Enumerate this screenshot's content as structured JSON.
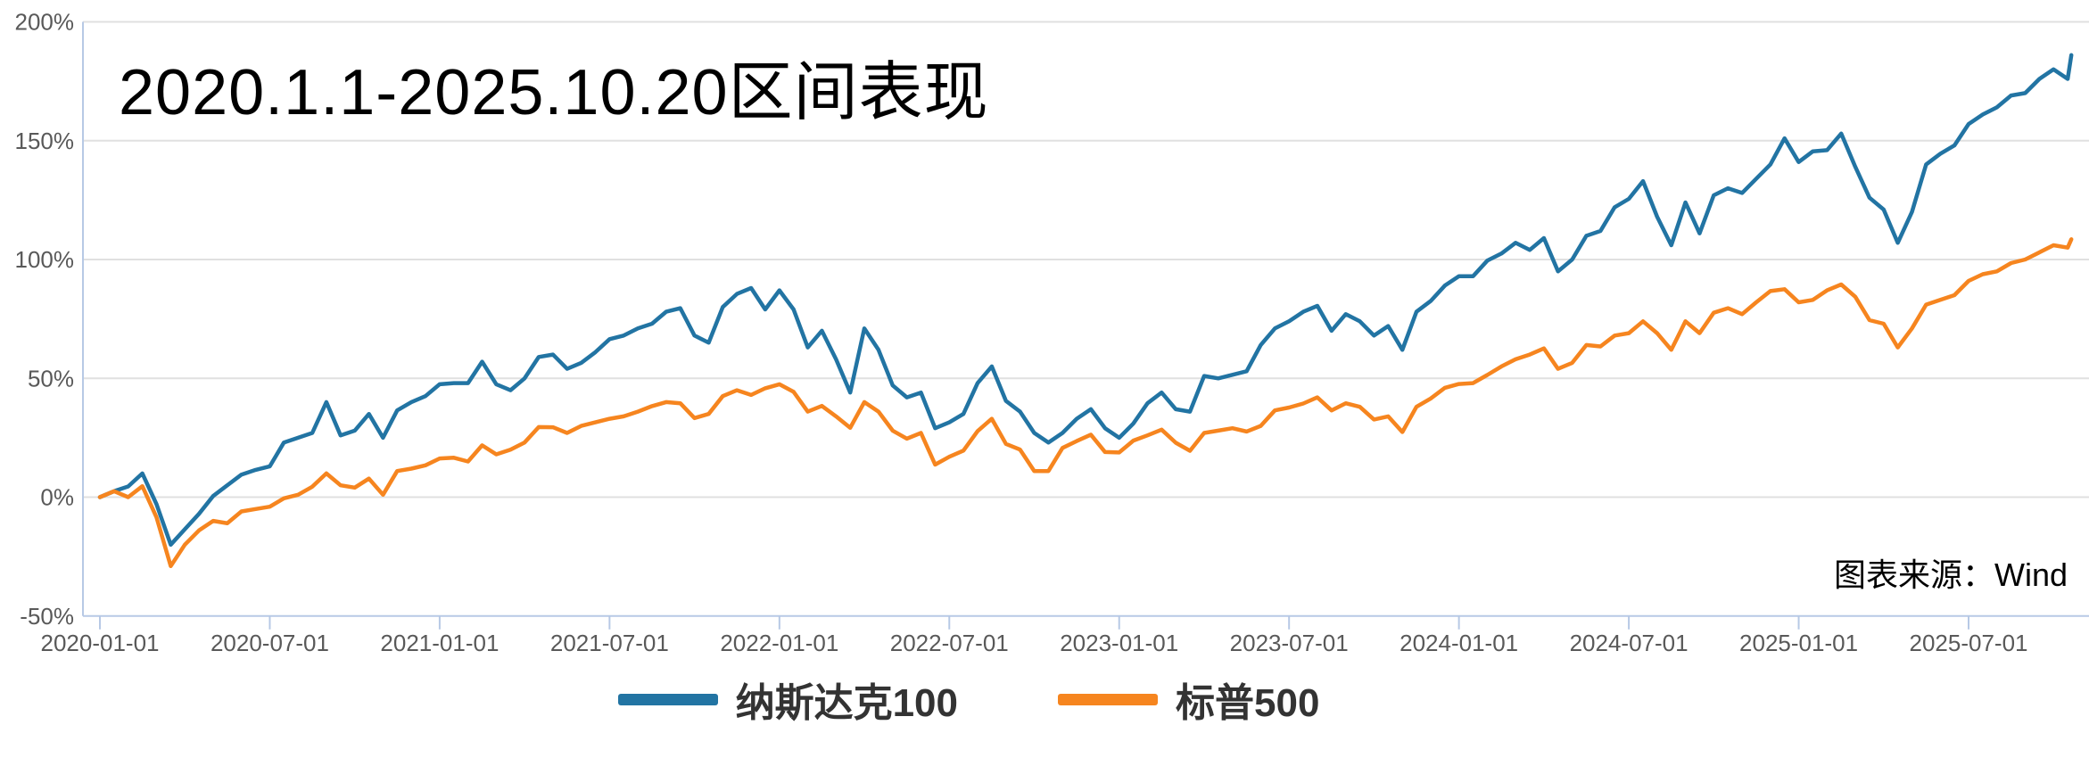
{
  "title": "2020.1.1-2025.10.20区间表现",
  "source_note": "图表来源：Wind",
  "legend": [
    {
      "label": "纳斯达克100",
      "color": "#2274A3"
    },
    {
      "label": "标普500",
      "color": "#F6851F"
    }
  ],
  "colors": {
    "background": "#FFFFFF",
    "gridline": "#E0E0E0",
    "axis_line": "#B7C9E5",
    "tick_label": "#595959",
    "title_text": "#000000",
    "legend_text": "#333333",
    "nasdaq100_line": "#2274A3",
    "sp500_line": "#F6851F"
  },
  "chart_data": {
    "type": "line",
    "title": "2020.1.1-2025.10.20区间表现",
    "xlabel": "",
    "ylabel": "",
    "ylim": [
      -50,
      200
    ],
    "grid": "horizontal",
    "legend_position": "bottom",
    "x_unit": "months since 2020-01-01",
    "x_tick_months": [
      0,
      6,
      12,
      18,
      24,
      30,
      36,
      42,
      48,
      54,
      60,
      66
    ],
    "x_tick_labels": [
      "2020-01-01",
      "2020-07-01",
      "2021-01-01",
      "2021-07-01",
      "2022-01-01",
      "2022-07-01",
      "2023-01-01",
      "2023-07-01",
      "2024-01-01",
      "2024-07-01",
      "2025-01-01",
      "2025-07-01"
    ],
    "y_tick_values": [
      200,
      150,
      100,
      50,
      0,
      -50
    ],
    "y_tick_labels": [
      "200%",
      "150%",
      "100%",
      "50%",
      "0%",
      "-50%"
    ],
    "x": [
      0,
      0.5,
      1,
      1.5,
      2,
      2.5,
      3,
      3.5,
      4,
      4.5,
      5,
      5.5,
      6,
      6.5,
      7,
      7.5,
      8,
      8.5,
      9,
      9.5,
      10,
      10.5,
      11,
      11.5,
      12,
      12.5,
      13,
      13.5,
      14,
      14.5,
      15,
      15.5,
      16,
      16.5,
      17,
      17.5,
      18,
      18.5,
      19,
      19.5,
      20,
      20.5,
      21,
      21.5,
      22,
      22.5,
      23,
      23.5,
      24,
      24.5,
      25,
      25.5,
      26,
      26.5,
      27,
      27.5,
      28,
      28.5,
      29,
      29.5,
      30,
      30.5,
      31,
      31.5,
      32,
      32.5,
      33,
      33.5,
      34,
      34.5,
      35,
      35.5,
      36,
      36.5,
      37,
      37.5,
      38,
      38.5,
      39,
      39.5,
      40,
      40.5,
      41,
      41.5,
      42,
      42.5,
      43,
      43.5,
      44,
      44.5,
      45,
      45.5,
      46,
      46.5,
      47,
      47.5,
      48,
      48.5,
      49,
      49.5,
      50,
      50.5,
      51,
      51.5,
      52,
      52.5,
      53,
      53.5,
      54,
      54.5,
      55,
      55.5,
      56,
      56.5,
      57,
      57.5,
      58,
      58.5,
      59,
      59.5,
      60,
      60.5,
      61,
      61.5,
      62,
      62.5,
      63,
      63.5,
      64,
      64.5,
      65,
      65.5,
      66,
      66.5,
      67,
      67.5,
      68,
      68.5,
      69,
      69.5,
      69.63
    ],
    "series": [
      {
        "name": "纳斯达克100",
        "color": "#2274A3",
        "values": [
          0,
          2.5,
          4.5,
          10,
          -3,
          -20,
          -13.5,
          -7,
          0.5,
          5,
          9.5,
          11.5,
          13,
          23,
          25,
          27,
          40,
          26,
          28,
          35,
          25,
          36.5,
          40,
          42.5,
          47.5,
          48,
          48,
          57,
          47.5,
          45,
          50,
          59,
          60,
          54,
          56.5,
          61,
          66.5,
          68,
          71,
          73,
          78,
          79.5,
          68,
          65,
          80,
          85.5,
          88,
          79,
          87,
          79,
          63,
          70,
          58,
          44,
          71,
          62,
          47,
          42,
          44,
          29,
          31.5,
          35,
          48,
          55,
          40.5,
          36,
          27,
          23,
          27,
          33,
          37,
          29,
          25,
          31,
          39.5,
          44,
          37,
          36,
          51,
          50,
          51.5,
          53,
          64,
          71,
          74,
          78,
          80.5,
          70,
          77,
          74,
          68,
          72,
          62,
          78,
          82.5,
          89,
          93,
          93,
          99.5,
          102.5,
          107,
          104,
          109,
          95,
          100,
          110,
          112,
          122,
          125.5,
          133,
          118,
          106,
          124,
          111,
          127,
          130,
          128,
          134,
          140,
          151,
          141,
          145.5,
          146,
          153,
          139,
          126,
          121,
          107,
          120,
          140,
          144.5,
          148,
          157,
          161,
          164,
          169,
          170,
          176,
          180,
          176,
          186
        ]
      },
      {
        "name": "标普500",
        "color": "#F6851F",
        "values": [
          0,
          2.5,
          0,
          4.6,
          -8.5,
          -29,
          -20,
          -14,
          -10,
          -11,
          -6,
          -5,
          -4,
          -0.5,
          1,
          4.4,
          10,
          5,
          4,
          7.8,
          1,
          11,
          12,
          13.4,
          16.3,
          16.6,
          15,
          21.8,
          18,
          20,
          23,
          29.5,
          29.4,
          27,
          30,
          31.5,
          33,
          34,
          36,
          38.3,
          40,
          39.5,
          33.3,
          35,
          42.5,
          45,
          43,
          45.8,
          47.5,
          44.3,
          36,
          38.4,
          34,
          29.2,
          40,
          36,
          28,
          24.6,
          27,
          13.7,
          17,
          19.6,
          27.8,
          33,
          22.4,
          20,
          11,
          11,
          20.7,
          23.6,
          26.3,
          19,
          18.8,
          23.8,
          26,
          28.4,
          22.9,
          19.5,
          27,
          28,
          29,
          27.6,
          30,
          36.5,
          37.7,
          39.4,
          42,
          36.5,
          39.5,
          38,
          32.7,
          34,
          27.4,
          38,
          41.5,
          46,
          47.6,
          48,
          51.4,
          55,
          58,
          60,
          62.6,
          54,
          56.5,
          64,
          63.4,
          68,
          69,
          74,
          69,
          62,
          74,
          69,
          77.6,
          79.5,
          77,
          82,
          86.7,
          87.5,
          82,
          83,
          87,
          89.5,
          84.3,
          74.5,
          73,
          63,
          71,
          81,
          83,
          85,
          91,
          93.8,
          95,
          98.5,
          100,
          103,
          106,
          105,
          108.5
        ]
      }
    ]
  }
}
